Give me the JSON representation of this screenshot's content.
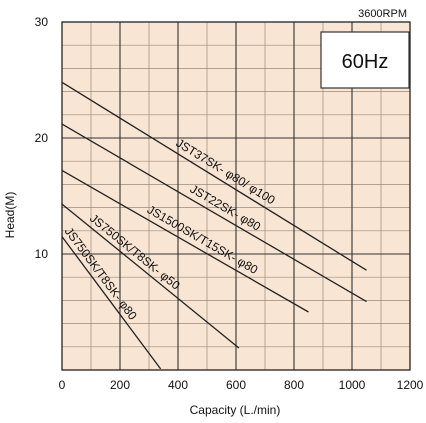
{
  "chart_data": {
    "type": "line",
    "title": "",
    "xlabel": "Capacity (L./min)",
    "ylabel": "Head(M)",
    "xlim": [
      0,
      1200
    ],
    "ylim": [
      0,
      30
    ],
    "x_ticks": [
      "0",
      "200",
      "400",
      "600",
      "800",
      "1000",
      "1200"
    ],
    "y_ticks": [
      "10",
      "20",
      "30"
    ],
    "grid": true,
    "annotations": {
      "rpm": "3600RPM",
      "frequency": "60Hz"
    },
    "series": [
      {
        "name": "JST37SK- φ80/ φ100",
        "x": [
          0,
          1050
        ],
        "y": [
          24.8,
          8.6
        ]
      },
      {
        "name": "JST22SK- φ80",
        "x": [
          0,
          1050
        ],
        "y": [
          21.2,
          5.9
        ]
      },
      {
        "name": "JS1500SK/T15SK- φ80",
        "x": [
          0,
          850
        ],
        "y": [
          17.2,
          5.0
        ]
      },
      {
        "name": "JS750SK/T8SK- φ50",
        "x": [
          0,
          610
        ],
        "y": [
          14.3,
          1.9
        ]
      },
      {
        "name": "JS750SK/T8SK- φ80",
        "x": [
          0,
          340
        ],
        "y": [
          11.5,
          0.1
        ]
      }
    ]
  }
}
